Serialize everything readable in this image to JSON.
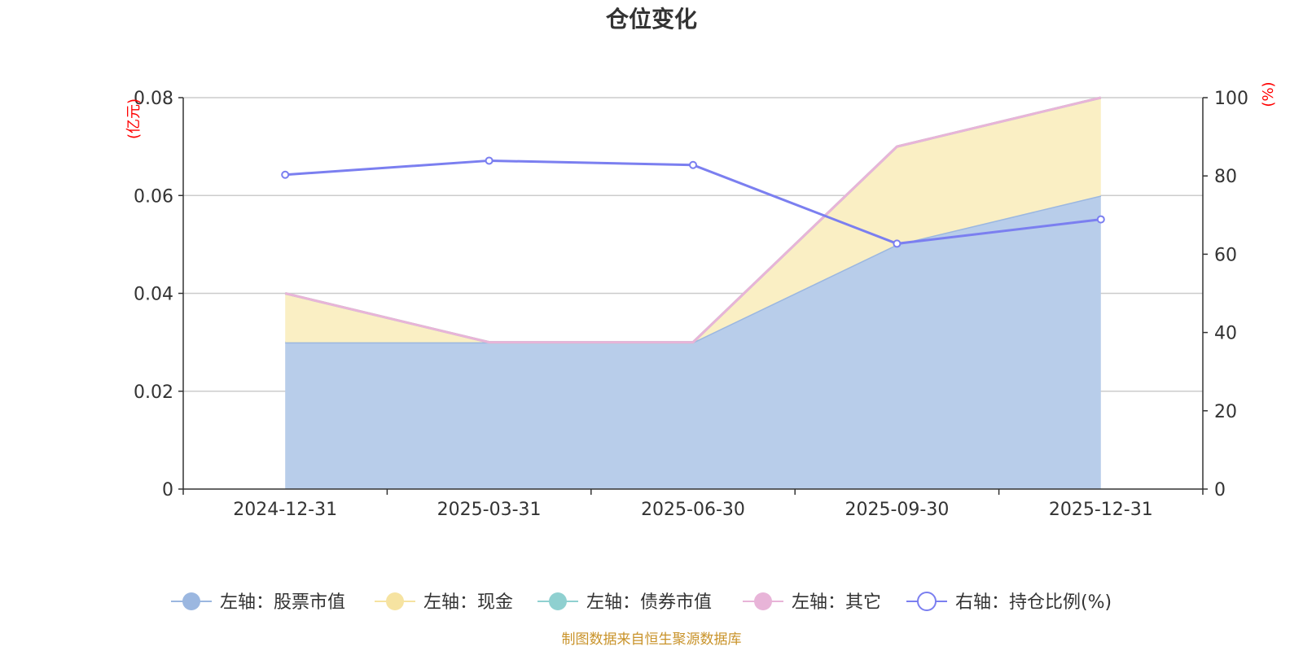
{
  "chart_data": {
    "type": "area",
    "title": "仓位变化",
    "categories": [
      "2024-12-31",
      "2025-03-31",
      "2025-06-30",
      "2025-09-30",
      "2025-12-31"
    ],
    "left_axis": {
      "unit": "(亿元)",
      "ylim": [
        0,
        0.08
      ],
      "ticks": [
        "0",
        "0.02",
        "0.04",
        "0.06",
        "0.08"
      ]
    },
    "right_axis": {
      "unit": "(%)",
      "ylim": [
        0,
        100
      ],
      "ticks": [
        "0",
        "20",
        "40",
        "60",
        "80",
        "100"
      ]
    },
    "series": [
      {
        "name": "左轴：股票市值",
        "axis": "left",
        "kind": "stacked-area",
        "color": "#9bb7e0",
        "fill": "#b8cdea",
        "values": [
          0.03,
          0.03,
          0.03,
          0.05,
          0.06
        ]
      },
      {
        "name": "左轴：现金",
        "axis": "left",
        "kind": "stacked-area",
        "color": "#f6e3a1",
        "fill": "#faefc4",
        "values": [
          0.01,
          0.0,
          0.0,
          0.02,
          0.02
        ]
      },
      {
        "name": "左轴：债券市值",
        "axis": "left",
        "kind": "stacked-area",
        "color": "#8fd0d0",
        "fill": "#8fd0d0",
        "values": [
          0,
          0,
          0,
          0,
          0
        ]
      },
      {
        "name": "左轴：其它",
        "axis": "left",
        "kind": "stacked-area",
        "color": "#e8b4d8",
        "fill": "#e8b4d8",
        "values": [
          0,
          0,
          0,
          0,
          0
        ]
      },
      {
        "name": "右轴：持仓比例(%)",
        "axis": "right",
        "kind": "line",
        "color": "#7b7ff0",
        "values": [
          80.3,
          83.9,
          82.8,
          62.7,
          68.9
        ]
      }
    ],
    "grid": true,
    "legend_position": "bottom"
  },
  "source": "制图数据来自恒生聚源数据库"
}
